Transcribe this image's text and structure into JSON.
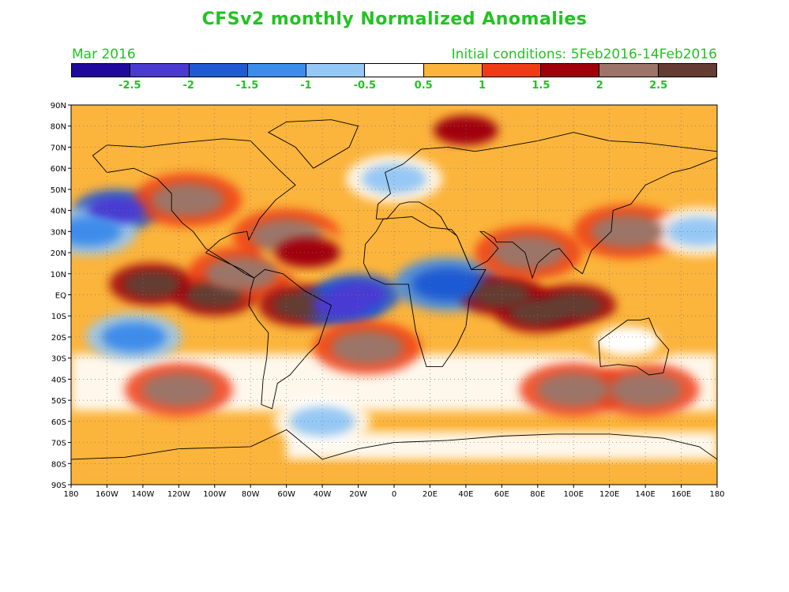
{
  "title": "CFSv2 monthly Normalized Anomalies",
  "forecast_month": "Mar 2016",
  "initial_conditions": "Initial conditions: 5Feb2016-14Feb2016",
  "colorbar": {
    "colors": [
      "#1e0a9c",
      "#4a3ad2",
      "#1f5ad4",
      "#3c8cec",
      "#96c8f5",
      "#ffffff",
      "#fbb43c",
      "#f03c14",
      "#a0000a",
      "#9c7468",
      "#643c32"
    ],
    "labels": [
      "-2.5",
      "-2",
      "-1.5",
      "-1",
      "-0.5",
      "0.5",
      "1",
      "1.5",
      "2",
      "2.5"
    ]
  },
  "axes": {
    "lat_labels": [
      "90N",
      "80N",
      "70N",
      "60N",
      "50N",
      "40N",
      "30N",
      "20N",
      "10N",
      "EQ",
      "10S",
      "20S",
      "30S",
      "40S",
      "50S",
      "60S",
      "70S",
      "80S",
      "90S"
    ],
    "lon_labels": [
      "180",
      "160W",
      "140W",
      "120W",
      "100W",
      "80W",
      "60W",
      "40W",
      "20W",
      "0",
      "20E",
      "40E",
      "60E",
      "80E",
      "100E",
      "120E",
      "140E",
      "160E",
      "180"
    ]
  },
  "chart_data": {
    "type": "heatmap",
    "variable": "Normalized Anomalies",
    "projection": "lat-lon",
    "xlim": [
      -180,
      180
    ],
    "ylim": [
      -90,
      90
    ],
    "grid": "dotted",
    "anomaly_regions": [
      {
        "lon": -135,
        "lat": 5,
        "level": 2.5
      },
      {
        "lon": -100,
        "lat": 0,
        "level": 2.5
      },
      {
        "lon": -120,
        "lat": -45,
        "level": 2.0
      },
      {
        "lon": -155,
        "lat": 40,
        "level": -2.5
      },
      {
        "lon": -145,
        "lat": -20,
        "level": -1.5
      },
      {
        "lon": -115,
        "lat": 45,
        "level": 2.0
      },
      {
        "lon": -85,
        "lat": 10,
        "level": 2.0
      },
      {
        "lon": -60,
        "lat": 28,
        "level": 2.0
      },
      {
        "lon": -48,
        "lat": 20,
        "level": 1.5
      },
      {
        "lon": -52,
        "lat": -5,
        "level": 2.5
      },
      {
        "lon": -20,
        "lat": 0,
        "level": -2.5
      },
      {
        "lon": -30,
        "lat": -5,
        "level": -2.5
      },
      {
        "lon": 30,
        "lat": 5,
        "level": -2.0
      },
      {
        "lon": -15,
        "lat": -25,
        "level": 2.0
      },
      {
        "lon": 60,
        "lat": 0,
        "level": 2.5
      },
      {
        "lon": 80,
        "lat": -8,
        "level": 2.5
      },
      {
        "lon": 100,
        "lat": -5,
        "level": 2.5
      },
      {
        "lon": 75,
        "lat": 20,
        "level": 2.0
      },
      {
        "lon": 130,
        "lat": 30,
        "level": 2.0
      },
      {
        "lon": 100,
        "lat": -45,
        "level": 2.0
      },
      {
        "lon": 140,
        "lat": -45,
        "level": 2.0
      },
      {
        "lon": 130,
        "lat": -22,
        "level": 0.0
      },
      {
        "lon": 170,
        "lat": 30,
        "level": -1.0
      },
      {
        "lon": -40,
        "lat": -60,
        "level": -1.0
      },
      {
        "lon": 0,
        "lat": 55,
        "level": -1.0
      },
      {
        "lon": 40,
        "lat": 78,
        "level": 1.5
      },
      {
        "lon": -170,
        "lat": 30,
        "level": -1.5
      }
    ]
  }
}
